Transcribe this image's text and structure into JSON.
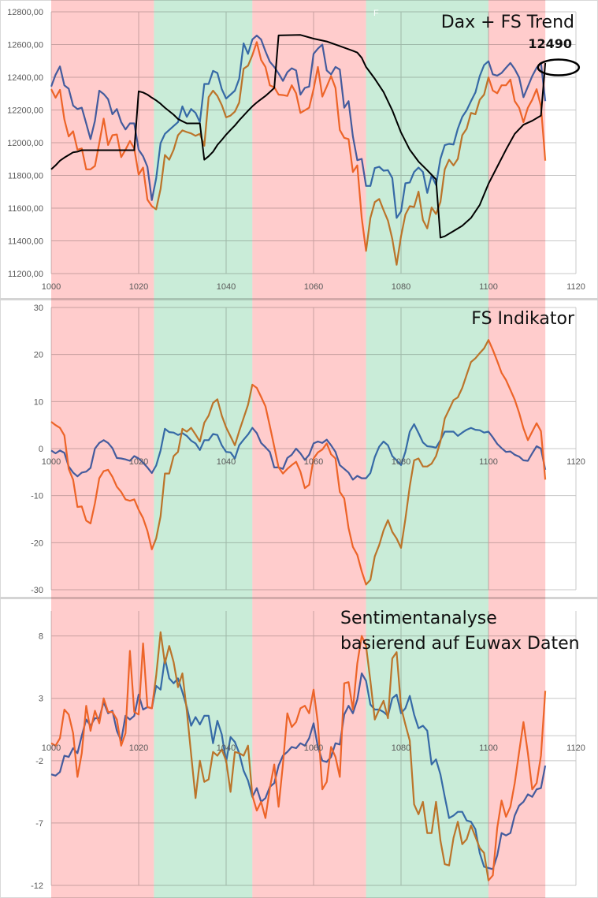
{
  "colors": {
    "series_a": "#4472c4",
    "series_b": "#ed7d31",
    "trend": "#000000",
    "band_bear": "#ff9a9a",
    "band_bull": "#94dab2",
    "grid": "#c8c8c8"
  },
  "chart_data": [
    {
      "type": "line",
      "title": "Dax + FS Trend",
      "annotation": {
        "label": "12490",
        "x": 1113,
        "y": 12490,
        "marker": "ellipse"
      },
      "stray_label": "F",
      "xlim": [
        1000,
        1120
      ],
      "ylim": [
        11200,
        12800
      ],
      "xticks": [
        1000,
        1020,
        1040,
        1060,
        1080,
        1100,
        1120
      ],
      "yticks": [
        11200,
        11400,
        11600,
        11800,
        12000,
        12200,
        12400,
        12600,
        12800
      ],
      "ytick_labels": [
        "11200,00",
        "11400,00",
        "11600,00",
        "11800,00",
        "12000,00",
        "12200,00",
        "12400,00",
        "12600,00",
        "12800,00"
      ],
      "grid": true,
      "x_start": 1000,
      "series": [
        {
          "color": "series_a",
          "values": [
            12343,
            12415,
            12466,
            12351,
            12330,
            12227,
            12206,
            12214,
            12118,
            12022,
            12134,
            12318,
            12298,
            12266,
            12174,
            12206,
            12126,
            12081,
            12118,
            12118,
            11957,
            11917,
            11853,
            11649,
            11781,
            11997,
            12054,
            12078,
            12102,
            12126,
            12222,
            12158,
            12206,
            12182,
            12126,
            12359,
            12359,
            12439,
            12426,
            12327,
            12270,
            12294,
            12318,
            12391,
            12607,
            12543,
            12631,
            12655,
            12631,
            12559,
            12495,
            12463,
            12423,
            12378,
            12431,
            12455,
            12442,
            12294,
            12335,
            12343,
            12543,
            12575,
            12600,
            12442,
            12418,
            12463,
            12447,
            12214,
            12254,
            12038,
            11893,
            11901,
            11736,
            11736,
            11845,
            11853,
            11829,
            11832,
            11784,
            11540,
            11580,
            11752,
            11757,
            11821,
            11848,
            11821,
            11693,
            11800,
            11741,
            11901,
            11985,
            11993,
            11989,
            12086,
            12158,
            12198,
            12254,
            12307,
            12407,
            12474,
            12498,
            12418,
            12410,
            12426,
            12458,
            12487,
            12450,
            12399,
            12278,
            12343,
            12407,
            12458,
            12487,
            12254
          ]
        },
        {
          "color": "series_b",
          "values": [
            12327,
            12275,
            12323,
            12142,
            12038,
            12070,
            11957,
            11965,
            11837,
            11837,
            11858,
            11997,
            12147,
            11986,
            12046,
            12050,
            11912,
            11957,
            12010,
            11965,
            11805,
            11848,
            11652,
            11612,
            11593,
            11717,
            11925,
            11896,
            11957,
            12046,
            12075,
            12065,
            12057,
            12042,
            12054,
            11981,
            12278,
            12318,
            12286,
            12230,
            12155,
            12166,
            12190,
            12246,
            12452,
            12471,
            12535,
            12615,
            12506,
            12463,
            12351,
            12339,
            12294,
            12291,
            12286,
            12351,
            12302,
            12182,
            12198,
            12214,
            12327,
            12463,
            12282,
            12343,
            12407,
            12335,
            12078,
            12030,
            12022,
            11821,
            11861,
            11540,
            11339,
            11540,
            11637,
            11656,
            11588,
            11524,
            11412,
            11254,
            11428,
            11560,
            11612,
            11607,
            11701,
            11527,
            11476,
            11604,
            11564,
            11637,
            11837,
            11896,
            11861,
            11901,
            12046,
            12086,
            12182,
            12174,
            12262,
            12294,
            12399,
            12319,
            12302,
            12351,
            12351,
            12386,
            12254,
            12214,
            12126,
            12214,
            12262,
            12327,
            12222,
            11890
          ]
        },
        {
          "color": "trend",
          "x": [
            1000,
            1001,
            1002,
            1003,
            1004,
            1005,
            1006,
            1007,
            1019,
            1020,
            1021,
            1022,
            1023,
            1024,
            1025,
            1026,
            1027,
            1028,
            1029,
            1030,
            1031,
            1034,
            1035,
            1036,
            1037,
            1038,
            1039,
            1040,
            1041,
            1042,
            1043,
            1044,
            1045,
            1046,
            1047,
            1048,
            1049,
            1050,
            1051,
            1052,
            1057,
            1060,
            1063,
            1066,
            1069,
            1070,
            1071,
            1072,
            1074,
            1076,
            1078,
            1080,
            1082,
            1084,
            1086,
            1088,
            1089,
            1090,
            1092,
            1094,
            1096,
            1098,
            1100,
            1102,
            1104,
            1106,
            1108,
            1110,
            1112,
            1113
          ],
          "values": [
            11837,
            11861,
            11890,
            11909,
            11925,
            11941,
            11945,
            11954,
            11954,
            12314,
            12307,
            12294,
            12275,
            12259,
            12238,
            12214,
            12193,
            12171,
            12145,
            12131,
            12118,
            12118,
            11896,
            11917,
            11945,
            11986,
            12017,
            12049,
            12078,
            12105,
            12137,
            12166,
            12195,
            12222,
            12246,
            12266,
            12286,
            12310,
            12335,
            12656,
            12659,
            12636,
            12619,
            12591,
            12562,
            12551,
            12519,
            12463,
            12391,
            12310,
            12198,
            12062,
            11957,
            11885,
            11832,
            11776,
            11420,
            11428,
            11460,
            11492,
            11540,
            11620,
            11749,
            11853,
            11957,
            12054,
            12110,
            12134,
            12166,
            12487
          ]
        }
      ]
    },
    {
      "type": "line",
      "title": "FS Indikator",
      "xlim": [
        1000,
        1120
      ],
      "ylim": [
        -30,
        30
      ],
      "xticks": [
        1000,
        1020,
        1040,
        1060,
        1080,
        1100,
        1120
      ],
      "yticks": [
        -30,
        -20,
        -10,
        0,
        10,
        20,
        30
      ],
      "grid": true,
      "x_start": 1000,
      "series": [
        {
          "color": "series_a",
          "values": [
            -0.4,
            -1,
            -0.4,
            -0.9,
            -3.8,
            -5.1,
            -5.9,
            -5.1,
            -4.9,
            -4.1,
            0,
            1.2,
            1.8,
            1.2,
            0.1,
            -2,
            -2.1,
            -2.3,
            -2.6,
            -1.6,
            -2.1,
            -3,
            -4,
            -5.2,
            -3.6,
            -0.4,
            4.2,
            3.5,
            3.4,
            2.9,
            3.3,
            2.7,
            1.7,
            1.1,
            -0.3,
            1.8,
            1.8,
            3.1,
            2.9,
            0.7,
            -0.7,
            -0.8,
            -2.1,
            0.7,
            1.9,
            3,
            4.4,
            3.3,
            1.2,
            0.3,
            -0.7,
            -4,
            -4,
            -4.3,
            -2,
            -1.3,
            0,
            -1,
            -2.4,
            -1.3,
            1.1,
            1.5,
            1.2,
            1.9,
            0.7,
            -0.7,
            -3.5,
            -4.3,
            -5.1,
            -6.6,
            -5.8,
            -6.3,
            -6.3,
            -5.2,
            -1.8,
            0.4,
            1.5,
            0.7,
            -1.6,
            -2.5,
            -3.5,
            -0.7,
            3.6,
            5.2,
            3.3,
            1.3,
            0.5,
            0.4,
            0.2,
            1.8,
            3.6,
            3.6,
            3.6,
            2.7,
            3.4,
            4,
            4.4,
            4,
            3.9,
            3.4,
            3.6,
            2.4,
            1,
            0.1,
            -0.7,
            -0.6,
            -1.3,
            -1.7,
            -2.5,
            -2.6,
            -1,
            0.5,
            0,
            -4.5
          ]
        },
        {
          "color": "series_b",
          "values": [
            5.7,
            5,
            4.4,
            2.8,
            -4.3,
            -6.6,
            -12.4,
            -12.3,
            -15.3,
            -15.9,
            -11.6,
            -6.3,
            -4.8,
            -4.5,
            -6,
            -8.1,
            -9.2,
            -10.8,
            -11.1,
            -10.8,
            -13,
            -14.8,
            -17.5,
            -21.4,
            -19.1,
            -14.4,
            -5.3,
            -5.3,
            -1.6,
            -0.7,
            4.2,
            3.6,
            4.4,
            3,
            1.5,
            5.5,
            7,
            9.7,
            10.5,
            7,
            4.5,
            2.6,
            0.7,
            3.7,
            6.5,
            9.3,
            13.6,
            12.9,
            11,
            9,
            4.8,
            0.4,
            -4,
            -5.3,
            -4.3,
            -3.5,
            -2.8,
            -4.9,
            -8.4,
            -7.7,
            -2.1,
            -0.8,
            -0.2,
            1.1,
            -1.2,
            -2.1,
            -9.2,
            -10.6,
            -16.9,
            -20.9,
            -22.6,
            -26.1,
            -28.9,
            -27.9,
            -22.9,
            -20.5,
            -17.4,
            -15.2,
            -17.7,
            -19.1,
            -21.1,
            -15,
            -8,
            -2.5,
            -2.1,
            -3.8,
            -3.8,
            -3.2,
            -1.6,
            1.5,
            6.4,
            8.3,
            10.3,
            10.9,
            12.9,
            15.7,
            18.4,
            19.2,
            20.3,
            21.3,
            23.1,
            21,
            18.6,
            16.1,
            14.6,
            12.5,
            10.4,
            7.6,
            4.3,
            1.8,
            3.6,
            5.4,
            3.7,
            -6.6
          ]
        }
      ]
    },
    {
      "type": "line",
      "title_lines": [
        "Sentimentanalyse",
        "basierend auf Euwax Daten"
      ],
      "xlim": [
        1000,
        1120
      ],
      "ylim": [
        -12,
        10
      ],
      "xticks": [
        1000,
        1020,
        1040,
        1060,
        1080,
        1100,
        1120
      ],
      "yticks": [
        -12,
        -7,
        -2,
        3,
        8
      ],
      "grid": true,
      "x_start": 1000,
      "series": [
        {
          "color": "series_a",
          "values": [
            -3.1,
            -3.2,
            -2.9,
            -1.6,
            -1.7,
            -1,
            -1.4,
            0,
            1.3,
            0.8,
            1.4,
            1.4,
            2.7,
            1.8,
            2,
            0.4,
            -0.4,
            1.6,
            1.3,
            1.6,
            3.3,
            2.1,
            2.3,
            2.2,
            4,
            3.7,
            6.2,
            4.6,
            4.2,
            4.6,
            3.5,
            2.3,
            0.8,
            1.5,
            0.9,
            1.6,
            1.6,
            -0.6,
            1.2,
            0.1,
            -2.1,
            -0.1,
            -0.5,
            -1.4,
            -2.8,
            -3.6,
            -4.9,
            -4.2,
            -5.3,
            -5,
            -4.1,
            -3.8,
            -2.4,
            -1.6,
            -1.3,
            -0.9,
            -1,
            -0.6,
            -0.8,
            -0.2,
            1,
            -0.9,
            -2,
            -2.1,
            -1.7,
            -0.6,
            -0.7,
            1.7,
            2.4,
            1.8,
            2.9,
            5,
            4.4,
            2.5,
            2.1,
            2.1,
            1.9,
            1.6,
            3,
            3.3,
            1.8,
            2.2,
            3.2,
            1.7,
            0.6,
            0.8,
            0.4,
            -2.3,
            -1.9,
            -3.1,
            -4.9,
            -6.6,
            -6.4,
            -6.1,
            -6.1,
            -6.8,
            -6.9,
            -7.5,
            -9.4,
            -10.5,
            -10.6,
            -10.7,
            -9.6,
            -7.8,
            -8,
            -7.8,
            -6.4,
            -5.6,
            -5.3,
            -4.7,
            -4.9,
            -4.3,
            -4.2,
            -2.4
          ]
        },
        {
          "color": "series_b",
          "values": [
            -0.6,
            -0.8,
            -0.2,
            2.1,
            1.7,
            0.2,
            -3.3,
            -1.4,
            2.4,
            0.4,
            2,
            1,
            3,
            1.9,
            1.9,
            1.3,
            -0.8,
            0.2,
            6.8,
            1.9,
            1.7,
            7.4,
            2.3,
            2.2,
            4.8,
            8.3,
            5.8,
            7.2,
            5.9,
            3.9,
            5,
            2,
            -1.5,
            -5,
            -2,
            -3.7,
            -3.5,
            -1.3,
            -1.6,
            -1.1,
            -2,
            -4.5,
            -1.3,
            -1.4,
            -1.6,
            -0.8,
            -4.8,
            -6,
            -5.3,
            -6.6,
            -4.2,
            -2.3,
            -5.7,
            -2.3,
            1.8,
            0.7,
            1.1,
            2.2,
            2.4,
            1.8,
            3.7,
            1,
            -4.3,
            -3.7,
            -0.9,
            -1.7,
            -3.3,
            4.2,
            4.3,
            2.1,
            5.8,
            8,
            7.2,
            4.4,
            1.3,
            2.1,
            2.8,
            1.4,
            6.2,
            6.7,
            2.3,
            0.9,
            -0.4,
            -5.5,
            -6.3,
            -5.3,
            -7.8,
            -7.8,
            -5.3,
            -8.4,
            -10.3,
            -10.4,
            -8.2,
            -6.9,
            -8.7,
            -8.3,
            -7.2,
            -8.1,
            -9,
            -9.4,
            -11.6,
            -11.2,
            -7.4,
            -5.2,
            -6.5,
            -5.7,
            -3.8,
            -1.3,
            1.1,
            -1.4,
            -4.3,
            -3.8,
            -1.6,
            3.6
          ]
        }
      ]
    }
  ],
  "bands": [
    {
      "from": 1000,
      "to": 1023.5,
      "kind": "band_bear"
    },
    {
      "from": 1023.5,
      "to": 1046,
      "kind": "band_bull"
    },
    {
      "from": 1046,
      "to": 1072,
      "kind": "band_bear"
    },
    {
      "from": 1072,
      "to": 1100,
      "kind": "band_bull"
    },
    {
      "from": 1100,
      "to": 1113,
      "kind": "band_bear"
    }
  ]
}
